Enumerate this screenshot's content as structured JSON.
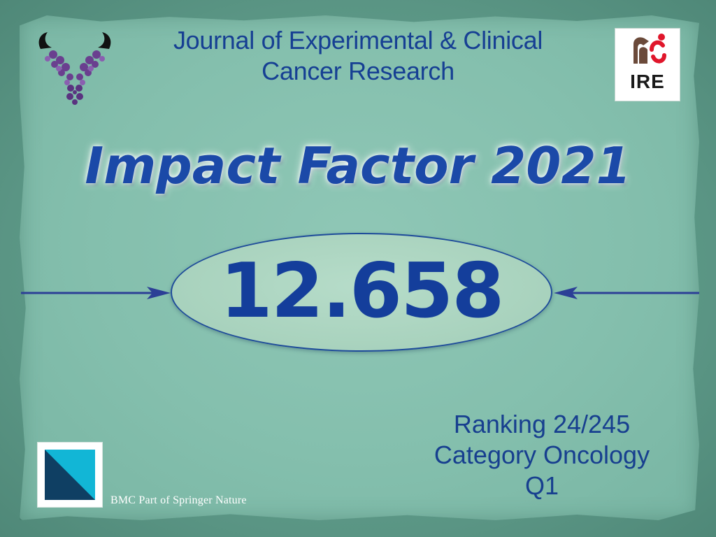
{
  "journal": {
    "title_line1": "Journal of Experimental & Clinical",
    "title_line2": "Cancer Research"
  },
  "partner_logo": {
    "text": "IRE",
    "icon": "ire-logo"
  },
  "journal_logo": {
    "icon": "antibody-logo"
  },
  "headline": "Impact Factor 2021",
  "impact_value": "12.658",
  "ranking": {
    "line1": "Ranking 24/245",
    "line2": "Category Oncology",
    "line3": "Q1"
  },
  "publisher": {
    "caption": "BMC Part of Springer Nature",
    "icon": "bmc-logo"
  },
  "colors": {
    "accent_blue": "#1b49a8",
    "background": "#84bfad",
    "ellipse": "#a8d2bd"
  }
}
